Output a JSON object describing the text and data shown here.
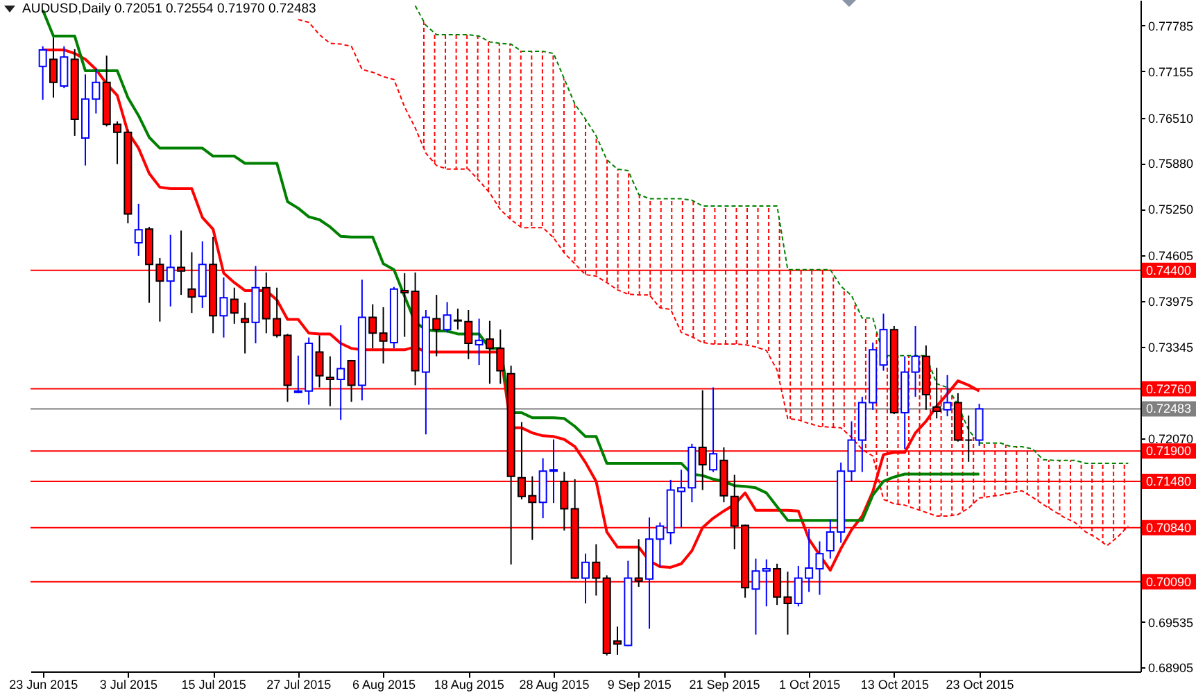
{
  "chart_data": {
    "type": "candlestick",
    "title": "AUDUSD,Daily 0.72051 0.72554 0.71970 0.72483",
    "categories": [
      "23 Jun 2015",
      null,
      null,
      null,
      null,
      null,
      null,
      null,
      "3 Jul 2015",
      null,
      null,
      null,
      null,
      null,
      null,
      null,
      "15 Jul 2015",
      null,
      null,
      null,
      null,
      null,
      null,
      null,
      "27 Jul 2015",
      null,
      null,
      null,
      null,
      null,
      null,
      null,
      "6 Aug 2015",
      null,
      null,
      null,
      null,
      null,
      null,
      null,
      "18 Aug 2015",
      null,
      null,
      null,
      null,
      null,
      null,
      null,
      "28 Aug 2015",
      null,
      null,
      null,
      null,
      null,
      null,
      null,
      "9 Sep 2015",
      null,
      null,
      null,
      null,
      null,
      null,
      null,
      "21 Sep 2015",
      null,
      null,
      null,
      null,
      null,
      null,
      null,
      "1 Oct 2015",
      null,
      null,
      null,
      null,
      null,
      null,
      null,
      "13 Oct 2015",
      null,
      null,
      null,
      null,
      null,
      null,
      null,
      "23 Oct 2015",
      null,
      null,
      null,
      null,
      null,
      null,
      null,
      null,
      null,
      null,
      null,
      null,
      null,
      null
    ],
    "ohlc": [
      [
        0.7722,
        0.775,
        0.7676,
        0.7745
      ],
      [
        0.7732,
        0.7762,
        0.7679,
        0.77
      ],
      [
        0.7695,
        0.775,
        0.7692,
        0.7735
      ],
      [
        0.7732,
        0.7746,
        0.7626,
        0.7649
      ],
      [
        0.7623,
        0.7711,
        0.7585,
        0.7677
      ],
      [
        0.7677,
        0.7719,
        0.7657,
        0.77
      ],
      [
        0.77,
        0.7737,
        0.7639,
        0.7642
      ],
      [
        0.7642,
        0.7646,
        0.7587,
        0.7631
      ],
      [
        0.7631,
        0.7635,
        0.7505,
        0.7518
      ],
      [
        0.7478,
        0.7532,
        0.746,
        0.7496
      ],
      [
        0.7497,
        0.75,
        0.7395,
        0.7448
      ],
      [
        0.7448,
        0.7457,
        0.7369,
        0.7425
      ],
      [
        0.7425,
        0.7489,
        0.739,
        0.7444
      ],
      [
        0.7444,
        0.7495,
        0.7406,
        0.7439
      ],
      [
        0.7414,
        0.7465,
        0.7381,
        0.7403
      ],
      [
        0.7404,
        0.748,
        0.7388,
        0.7448
      ],
      [
        0.7448,
        0.7486,
        0.7353,
        0.7377
      ],
      [
        0.7377,
        0.743,
        0.7347,
        0.7402
      ],
      [
        0.74,
        0.7416,
        0.7366,
        0.7381
      ],
      [
        0.7373,
        0.7395,
        0.7325,
        0.7368
      ],
      [
        0.7368,
        0.7446,
        0.7339,
        0.7416
      ],
      [
        0.7416,
        0.7437,
        0.7353,
        0.7373
      ],
      [
        0.7373,
        0.7416,
        0.7347,
        0.735
      ],
      [
        0.735,
        0.7352,
        0.7258,
        0.7281
      ],
      [
        0.7271,
        0.7322,
        0.727,
        0.7273
      ],
      [
        0.7273,
        0.7347,
        0.7254,
        0.7339
      ],
      [
        0.7327,
        0.735,
        0.7278,
        0.7294
      ],
      [
        0.7292,
        0.7321,
        0.7252,
        0.7289
      ],
      [
        0.7289,
        0.7364,
        0.7233,
        0.7304
      ],
      [
        0.7315,
        0.7316,
        0.7258,
        0.7281
      ],
      [
        0.7281,
        0.7427,
        0.726,
        0.7375
      ],
      [
        0.7375,
        0.7393,
        0.7332,
        0.7353
      ],
      [
        0.7353,
        0.7389,
        0.7311,
        0.7342
      ],
      [
        0.734,
        0.7417,
        0.7332,
        0.7414
      ],
      [
        0.7412,
        0.7436,
        0.7348,
        0.7409
      ],
      [
        0.7411,
        0.7437,
        0.7281,
        0.7301
      ],
      [
        0.7299,
        0.7385,
        0.7213,
        0.7375
      ],
      [
        0.7373,
        0.7406,
        0.7321,
        0.7358
      ],
      [
        0.7358,
        0.7396,
        0.7354,
        0.7378
      ],
      [
        0.7371,
        0.7387,
        0.7358,
        0.737
      ],
      [
        0.7369,
        0.7385,
        0.7317,
        0.7339
      ],
      [
        0.7337,
        0.7373,
        0.7309,
        0.7343
      ],
      [
        0.7345,
        0.737,
        0.7283,
        0.7332
      ],
      [
        0.7332,
        0.7358,
        0.7283,
        0.7301
      ],
      [
        0.7297,
        0.7308,
        0.7033,
        0.7155
      ],
      [
        0.7153,
        0.723,
        0.7123,
        0.7127
      ],
      [
        0.7128,
        0.7155,
        0.7067,
        0.7119
      ],
      [
        0.7119,
        0.718,
        0.7097,
        0.7162
      ],
      [
        0.7162,
        0.7206,
        0.7118,
        0.7164
      ],
      [
        0.7148,
        0.7161,
        0.708,
        0.711
      ],
      [
        0.711,
        0.7151,
        0.7013,
        0.7014
      ],
      [
        0.7014,
        0.7048,
        0.6979,
        0.7036
      ],
      [
        0.7036,
        0.7061,
        0.699,
        0.7014
      ],
      [
        0.7014,
        0.7018,
        0.6907,
        0.691
      ],
      [
        0.6927,
        0.6947,
        0.6908,
        0.6923
      ],
      [
        0.6921,
        0.7038,
        0.692,
        0.7014
      ],
      [
        0.7014,
        0.7068,
        0.7002,
        0.701
      ],
      [
        0.7013,
        0.7098,
        0.6944,
        0.7068
      ],
      [
        0.7068,
        0.7091,
        0.703,
        0.7086
      ],
      [
        0.7077,
        0.715,
        0.7061,
        0.7136
      ],
      [
        0.7134,
        0.7164,
        0.7084,
        0.7139
      ],
      [
        0.7139,
        0.72,
        0.7119,
        0.7195
      ],
      [
        0.7195,
        0.7274,
        0.7136,
        0.7171
      ],
      [
        0.7164,
        0.7278,
        0.7161,
        0.7186
      ],
      [
        0.7177,
        0.7195,
        0.7119,
        0.7128
      ],
      [
        0.7127,
        0.7157,
        0.7054,
        0.7086
      ],
      [
        0.7087,
        0.7088,
        0.6987,
        0.7001
      ],
      [
        0.6999,
        0.7041,
        0.6936,
        0.7024
      ],
      [
        0.7024,
        0.704,
        0.6975,
        0.7027
      ],
      [
        0.7027,
        0.7034,
        0.6977,
        0.6988
      ],
      [
        0.6988,
        0.7023,
        0.6936,
        0.6979
      ],
      [
        0.6979,
        0.7031,
        0.6975,
        0.7014
      ],
      [
        0.7014,
        0.7082,
        0.6995,
        0.7028
      ],
      [
        0.7027,
        0.7065,
        0.6991,
        0.7048
      ],
      [
        0.7052,
        0.7095,
        0.7041,
        0.7078
      ],
      [
        0.7078,
        0.7174,
        0.7063,
        0.7162
      ],
      [
        0.7162,
        0.7231,
        0.7148,
        0.7205
      ],
      [
        0.7205,
        0.7265,
        0.7161,
        0.7257
      ],
      [
        0.7257,
        0.734,
        0.7247,
        0.733
      ],
      [
        0.7309,
        0.738,
        0.7301,
        0.7358
      ],
      [
        0.7358,
        0.7363,
        0.7241,
        0.7243
      ],
      [
        0.7243,
        0.7321,
        0.7193,
        0.7299
      ],
      [
        0.7299,
        0.7363,
        0.7265,
        0.7321
      ],
      [
        0.7321,
        0.7336,
        0.7247,
        0.7268
      ],
      [
        0.7251,
        0.7305,
        0.7235,
        0.7245
      ],
      [
        0.7247,
        0.7295,
        0.7238,
        0.7257
      ],
      [
        0.7257,
        0.727,
        0.7203,
        0.7205
      ],
      [
        0.7205,
        0.7239,
        0.7175,
        0.7205
      ],
      [
        0.72051,
        0.72554,
        0.7197,
        0.72483
      ],
      null,
      null,
      null,
      null,
      null,
      null,
      null,
      null,
      null,
      null,
      null,
      null,
      null,
      null
    ],
    "colors": [
      "#0000ff",
      "#ff0000",
      "#0000ff",
      "#ff0000",
      "#0000ff",
      "#0000ff",
      "#ff0000",
      "#ff0000",
      "#ff0000",
      "#0000ff",
      "#ff0000",
      "#ff0000",
      "#0000ff",
      "#ff0000",
      "#ff0000",
      "#0000ff",
      "#ff0000",
      "#0000ff",
      "#ff0000",
      "#ff0000",
      "#0000ff",
      "#ff0000",
      "#ff0000",
      "#ff0000",
      "#0000ff",
      "#0000ff",
      "#ff0000",
      "#ff0000",
      "#0000ff",
      "#ff0000",
      "#0000ff",
      "#ff0000",
      "#ff0000",
      "#0000ff",
      "#ff0000",
      "#ff0000",
      "#0000ff",
      "#ff0000",
      "#0000ff",
      "#ff0000",
      "#ff0000",
      "#0000ff",
      "#ff0000",
      "#ff0000",
      "#ff0000",
      "#ff0000",
      "#ff0000",
      "#0000ff",
      "#0000ff",
      "#ff0000",
      "#ff0000",
      "#0000ff",
      "#ff0000",
      "#ff0000",
      "#ff0000",
      "#0000ff",
      "#ff0000",
      "#0000ff",
      "#0000ff",
      "#0000ff",
      "#0000ff",
      "#0000ff",
      "#ff0000",
      "#0000ff",
      "#ff0000",
      "#ff0000",
      "#ff0000",
      "#0000ff",
      "#0000ff",
      "#ff0000",
      "#ff0000",
      "#0000ff",
      "#0000ff",
      "#0000ff",
      "#0000ff",
      "#0000ff",
      "#0000ff",
      "#0000ff",
      "#0000ff",
      "#0000ff",
      "#ff0000",
      "#0000ff",
      "#0000ff",
      "#ff0000",
      "#ff0000",
      "#0000ff",
      "#ff0000",
      "#000000",
      "#0000ff",
      null,
      null,
      null,
      null,
      null,
      null,
      null,
      null,
      null,
      null,
      null,
      null,
      null,
      null
    ],
    "series": [
      {
        "type": "line",
        "color": "#ff0000",
        "line_style": "dashed",
        "values": [
          null,
          null,
          null,
          null,
          null,
          null,
          null,
          null,
          null,
          null,
          null,
          null,
          null,
          null,
          null,
          null,
          null,
          null,
          null,
          null,
          null,
          null,
          null,
          null,
          0.7787,
          0.7783,
          0.7766,
          0.7754,
          0.7753,
          0.775,
          0.7718,
          0.7714,
          0.7708,
          0.7704,
          0.7666,
          0.7637,
          0.7602,
          0.7585,
          0.758,
          0.758,
          0.758,
          0.7564,
          0.7547,
          0.7524,
          0.751,
          0.7499,
          0.7499,
          0.7499,
          0.7485,
          0.7464,
          0.7449,
          0.7434,
          0.7432,
          0.7423,
          0.7413,
          0.7407,
          0.7406,
          0.7406,
          0.7388,
          0.7386,
          0.7354,
          0.7348,
          0.734,
          0.7338,
          0.7338,
          0.7338,
          0.7337,
          0.7334,
          0.7329,
          0.7302,
          0.7235,
          0.7233,
          0.7228,
          0.7224,
          0.7223,
          0.7222,
          0.7209,
          0.7192,
          0.7183,
          0.7123,
          0.7117,
          0.7115,
          0.711,
          0.7105,
          0.71,
          0.71,
          0.7102,
          0.7111,
          0.7125,
          0.7127,
          0.7129,
          0.7132,
          0.7135,
          0.7126,
          0.7116,
          0.7107,
          0.7098,
          0.7091,
          0.7078,
          0.707,
          0.7059,
          0.7071,
          0.7086
        ],
        "lower": [
          null,
          null,
          null,
          null,
          null,
          null,
          null,
          null,
          null,
          null,
          null,
          null,
          null,
          null,
          null,
          null,
          null,
          null,
          null,
          null,
          null,
          null,
          null,
          null,
          null,
          null,
          null,
          null,
          null,
          null,
          null,
          null,
          null,
          null,
          null,
          0.7637,
          0.7602,
          0.7585,
          0.758,
          0.758,
          0.758,
          0.7564,
          0.7547,
          0.7524,
          0.751,
          0.7499,
          0.7499,
          0.7499,
          0.7485,
          0.7464,
          0.7449,
          0.7434,
          0.7432,
          0.7423,
          0.7413,
          0.7407,
          0.7406,
          0.7406,
          0.7388,
          0.7386,
          0.7354,
          0.7348,
          0.734,
          0.7338,
          0.7338,
          0.7338,
          0.7337,
          0.7334,
          0.7329,
          0.7302,
          0.7235,
          0.7233,
          0.7228,
          0.7224,
          0.7223,
          0.7222,
          0.7209,
          0.7192,
          0.7183,
          0.7123,
          0.7117,
          0.7115,
          0.711,
          0.7105,
          0.71,
          0.71,
          0.7102,
          0.7111,
          0.7125,
          0.7127,
          0.7129,
          0.7132,
          0.7135,
          0.7126,
          0.7116,
          0.7107,
          0.7098,
          0.7091,
          0.7078,
          0.707,
          0.7059,
          0.7071,
          0.7086
        ],
        "upper": [
          null,
          null,
          null,
          null,
          null,
          null,
          null,
          null,
          null,
          null,
          null,
          null,
          null,
          null,
          null,
          null,
          null,
          null,
          null,
          null,
          null,
          null,
          null,
          null,
          null,
          null,
          null,
          null,
          null,
          null,
          null,
          null,
          null,
          null,
          null,
          0.7806,
          0.7779,
          0.7766,
          0.7766,
          0.7766,
          0.7766,
          0.7764,
          0.7756,
          0.7754,
          0.7753,
          0.7743,
          0.7743,
          0.7743,
          0.774,
          0.7705,
          0.767,
          0.7649,
          0.7626,
          0.7593,
          0.758,
          0.7578,
          0.7545,
          0.7539,
          0.7539,
          0.7539,
          0.7539,
          0.7537,
          0.7529,
          0.7529,
          0.7529,
          0.7529,
          0.7529,
          0.7529,
          0.7529,
          0.7529,
          0.7441,
          0.7441,
          0.7441,
          0.7441,
          0.7441,
          0.7418,
          0.7405,
          0.7374,
          0.7374,
          0.7322,
          0.7322,
          0.7322,
          0.7322,
          0.7322,
          0.7283,
          0.7278,
          0.7254,
          0.7219,
          0.7201,
          0.7201,
          0.7201,
          0.7196,
          0.7196,
          0.7193,
          0.7178,
          0.7177,
          0.7177,
          0.7177,
          0.7173,
          0.7173,
          0.7173,
          0.7173,
          0.7173
        ]
      },
      {
        "type": "line",
        "color": "#008000",
        "line_style": "dashed",
        "values": [
          null,
          null,
          null,
          null,
          null,
          null,
          null,
          null,
          null,
          null,
          null,
          null,
          null,
          null,
          null,
          null,
          null,
          null,
          null,
          null,
          null,
          null,
          null,
          null,
          null,
          null,
          null,
          null,
          null,
          null,
          null,
          null,
          null,
          null,
          null,
          0.7806,
          0.7779,
          0.7766,
          0.7766,
          0.7766,
          0.7766,
          0.7764,
          0.7756,
          0.7754,
          0.7753,
          0.7743,
          0.7743,
          0.7743,
          0.774,
          0.7705,
          0.767,
          0.7649,
          0.7626,
          0.7593,
          0.758,
          0.7578,
          0.7545,
          0.7539,
          0.7539,
          0.7539,
          0.7539,
          0.7537,
          0.7529,
          0.7529,
          0.7529,
          0.7529,
          0.7529,
          0.7529,
          0.7529,
          0.7529,
          0.7441,
          0.7441,
          0.7441,
          0.7441,
          0.7441,
          0.7418,
          0.7405,
          0.7374,
          0.7374,
          0.7322,
          0.7322,
          0.7322,
          0.7322,
          0.7322,
          0.7283,
          0.7278,
          0.7254,
          0.7219,
          0.7201,
          0.7201,
          0.7201,
          0.7196,
          0.7196,
          0.7193,
          0.7178,
          0.7177,
          0.7177,
          0.7177,
          0.7173,
          0.7173,
          0.7173,
          0.7173,
          0.7173
        ]
      },
      {
        "type": "line",
        "color": "#ff0000",
        "values": [
          0.7745,
          0.7745,
          0.7745,
          0.774,
          0.7732,
          0.7718,
          0.7698,
          0.7682,
          0.7631,
          0.7609,
          0.7574,
          0.7555,
          0.7553,
          0.7553,
          0.7553,
          0.7513,
          0.7497,
          0.7436,
          0.7423,
          0.7412,
          0.7412,
          0.7412,
          0.7399,
          0.7372,
          0.7372,
          0.7353,
          0.7352,
          0.7352,
          0.7339,
          0.7332,
          0.733,
          0.733,
          0.733,
          0.733,
          0.733,
          0.7334,
          0.7327,
          0.7327,
          0.7327,
          0.7327,
          0.7327,
          0.7327,
          0.7327,
          0.7327,
          0.7222,
          0.7222,
          0.7215,
          0.7211,
          0.721,
          0.7206,
          0.7196,
          0.7174,
          0.7148,
          0.7078,
          0.7057,
          0.7057,
          0.7057,
          0.7038,
          0.703,
          0.7029,
          0.7034,
          0.7052,
          0.7084,
          0.7097,
          0.7107,
          0.7116,
          0.7132,
          0.7108,
          0.7108,
          0.7108,
          0.7108,
          0.7107,
          0.7068,
          0.7046,
          0.7025,
          0.7055,
          0.7081,
          0.71,
          0.7134,
          0.7185,
          0.7188,
          0.7188,
          0.7215,
          0.7231,
          0.7252,
          0.7269,
          0.7287,
          0.7281,
          0.7273,
          null,
          null,
          null,
          null,
          null,
          null,
          null,
          null,
          null,
          null,
          null,
          null,
          null,
          null
        ]
      },
      {
        "type": "line",
        "color": "#008000",
        "values": [
          0.78,
          0.7764,
          0.7764,
          0.7764,
          0.7716,
          0.7716,
          0.7716,
          0.7716,
          0.7679,
          0.7654,
          0.7624,
          0.7609,
          0.7609,
          0.7609,
          0.7609,
          0.7609,
          0.7598,
          0.7598,
          0.7598,
          0.7588,
          0.7588,
          0.7588,
          0.7588,
          0.7535,
          0.7526,
          0.7514,
          0.751,
          0.75,
          0.7487,
          0.7486,
          0.7486,
          0.7486,
          0.7449,
          0.7441,
          0.7404,
          0.7368,
          0.7358,
          0.7356,
          0.7356,
          0.7352,
          0.7352,
          0.7352,
          0.7332,
          0.7332,
          0.7243,
          0.7243,
          0.7236,
          0.7236,
          0.7236,
          0.7235,
          0.7224,
          0.721,
          0.721,
          0.7173,
          0.7173,
          0.7173,
          0.7173,
          0.7173,
          0.7173,
          0.7173,
          0.7173,
          0.7158,
          0.7156,
          0.7151,
          0.7148,
          0.7142,
          0.7141,
          0.7139,
          0.7132,
          0.7113,
          0.7094,
          0.7094,
          0.7094,
          0.7094,
          0.7094,
          0.7094,
          0.7094,
          0.7094,
          0.7129,
          0.7148,
          0.7154,
          0.7158,
          0.7158,
          0.7158,
          0.7158,
          0.7158,
          0.7158,
          0.7158,
          0.7158,
          null,
          null,
          null,
          null,
          null,
          null,
          null,
          null,
          null,
          null,
          null,
          null,
          null,
          null
        ]
      }
    ],
    "ylim": [
      0.6885,
      0.7814
    ],
    "yticks": [
      0.77785,
      0.77155,
      {
        "value": 0.7651,
        "label": "0.76510"
      },
      {
        "value": 0.7588,
        "label": "0.75880"
      },
      {
        "value": 0.7525,
        "label": "0.75250"
      },
      0.74605,
      0.73975,
      0.73345,
      {
        "value": 0.7207,
        "label": "0.72070"
      },
      0.69535,
      0.68905
    ],
    "ref_lines": [
      {
        "axis": "y",
        "value": 0.744,
        "label": "0.74400",
        "color": "#ff0000"
      },
      {
        "axis": "y",
        "value": 0.7276,
        "label": "0.72760",
        "color": "#ff0000"
      },
      {
        "axis": "y",
        "value": 0.72483,
        "label": "0.72483",
        "color": "#808080"
      },
      {
        "axis": "y",
        "value": 0.719,
        "label": "0.71900",
        "color": "#ff0000"
      },
      {
        "axis": "y",
        "value": 0.7148,
        "label": "0.71480",
        "color": "#ff0000"
      },
      {
        "axis": "y",
        "value": 0.7084,
        "label": "0.70840",
        "color": "#ff0000"
      },
      {
        "axis": "y",
        "value": 0.7009,
        "label": "0.70090",
        "color": "#ff0000"
      }
    ]
  }
}
